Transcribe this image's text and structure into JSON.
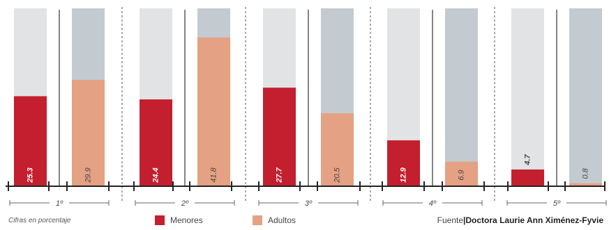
{
  "chart_data": {
    "type": "bar",
    "note": "Cifras en porcentaje",
    "source": {
      "label": "Fuente",
      "name": "Doctora Laurie Ann Ximénez-Fyvie"
    },
    "ylim": [
      0,
      100
    ],
    "categories": [
      "1º",
      "2º",
      "3º",
      "4º",
      "5º"
    ],
    "series": [
      {
        "name": "Menores",
        "color": "#c41f2e",
        "values": [
          25.3,
          24.4,
          27.7,
          12.9,
          4.7
        ],
        "labels": [
          "25.3",
          "24.4",
          "27.7",
          "12.9",
          "4.7"
        ]
      },
      {
        "name": "Adultos",
        "color": "#e5a183",
        "values": [
          29.9,
          41.8,
          20.5,
          6.9,
          0.8
        ],
        "labels": [
          "29.9",
          "41.8",
          "20.5",
          "6.9",
          "0.8"
        ]
      }
    ],
    "background_colors": {
      "Menores": "#e1e3e5",
      "Adultos": "#c3cbd0"
    },
    "full_scale_values": {
      "Menores": 50,
      "Adultos": 50
    }
  }
}
